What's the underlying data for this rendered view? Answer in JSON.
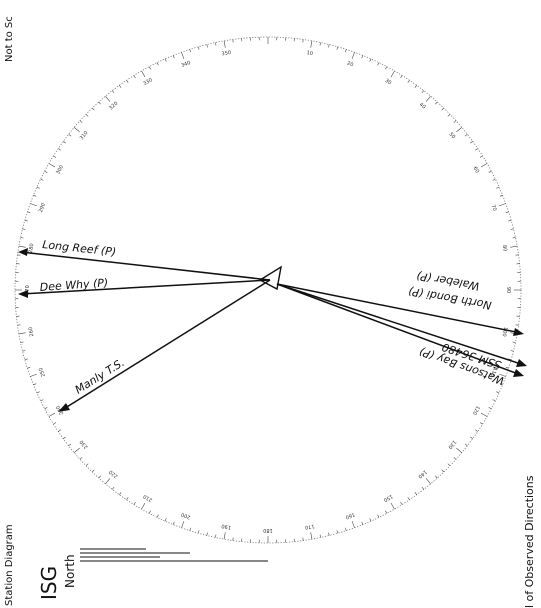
{
  "header": {
    "not_to_scale": "Not to Sc"
  },
  "footer": {
    "station_diagram_label": "Station Diagram",
    "isg_label": "ISG",
    "north_label": "North",
    "side_fragment": "l of Observed Directions"
  },
  "rays": [
    {
      "name": "long-reef-ray",
      "label": "Long Reef (P)"
    },
    {
      "name": "dee-why-ray",
      "label": "Dee Why (P)"
    },
    {
      "name": "manly-ts-ray",
      "label": "Manly T.S."
    },
    {
      "name": "north-bondi-ray",
      "label": "North Bondi (P)"
    },
    {
      "name": "waleber-ray",
      "label": "Waleber (P)"
    },
    {
      "name": "ssm-ray",
      "label": "SSM 36480"
    },
    {
      "name": "watsons-bay-ray",
      "label": "Watsons Bay (P)"
    }
  ],
  "ring_labels": [
    "10",
    "350",
    "340",
    "30",
    "40",
    "50",
    "60",
    "70",
    "80",
    "90",
    "100",
    "110",
    "120",
    "130",
    "140",
    "150",
    "160",
    "170",
    "180",
    "190",
    "200",
    "210",
    "220",
    "230",
    "240",
    "250",
    "260",
    "270",
    "280",
    "290",
    "300",
    "310",
    "320",
    "330",
    "20"
  ],
  "colors": {
    "ink": "#111111",
    "paper": "#ffffff"
  }
}
